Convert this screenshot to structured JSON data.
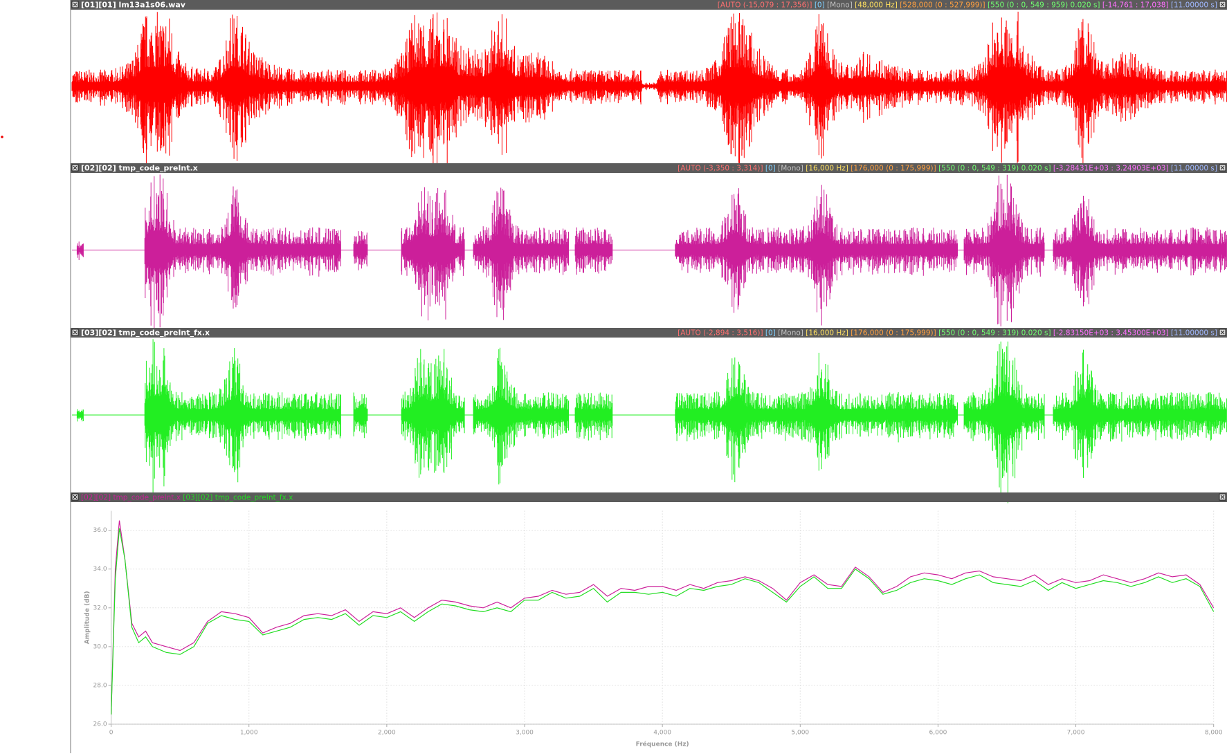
{
  "panels": [
    {
      "title": "[01][01] lm13a1s06.wav",
      "info": [
        "[AUTO (-15,079 : 17,356)]",
        "[0]",
        "[Mono]",
        "[48,000 Hz]",
        "[528,000 (0 : 527,999)]",
        "[550 (0 : 0, 549 : 959) 0.020 s]",
        "[-14,761 : 17,038]",
        "[11.00000 s]"
      ]
    },
    {
      "title": "[02][02] tmp_code_preInt.x",
      "info": [
        "[AUTO (-3,350 : 3,314)]",
        "[0]",
        "[Mono]",
        "[16,000 Hz]",
        "[176,000 (0 : 175,999)]",
        "[550 (0 : 0, 549 : 319) 0.020 s]",
        "[-3.28431E+03 : 3.24903E+03]",
        "[11.00000 s]"
      ]
    },
    {
      "title": "[03][02] tmp_code_preInt_fx.x",
      "info": [
        "[AUTO (-2,894 : 3,516)]",
        "[0]",
        "[Mono]",
        "[16,000 Hz]",
        "[176,000 (0 : 175,999)]",
        "[550 (0 : 0, 549 : 319) 0.020 s]",
        "[-2.83150E+03 : 3.45300E+03]",
        "[11.00000 s]"
      ]
    }
  ],
  "chart_data": {
    "type": "line",
    "xlabel": "Fréquence (Hz)",
    "ylabel": "Amplitude (dB)",
    "x": [
      0,
      30,
      60,
      100,
      150,
      200,
      250,
      300,
      400,
      500,
      600,
      700,
      800,
      900,
      1000,
      1100,
      1200,
      1300,
      1400,
      1500,
      1600,
      1700,
      1800,
      1900,
      2000,
      2100,
      2200,
      2300,
      2400,
      2500,
      2600,
      2700,
      2800,
      2900,
      3000,
      3100,
      3200,
      3300,
      3400,
      3500,
      3600,
      3700,
      3800,
      3900,
      4000,
      4100,
      4200,
      4300,
      4400,
      4500,
      4600,
      4700,
      4800,
      4900,
      5000,
      5100,
      5200,
      5300,
      5400,
      5500,
      5600,
      5700,
      5800,
      5900,
      6000,
      6100,
      6200,
      6300,
      6400,
      6500,
      6600,
      6700,
      6800,
      6900,
      7000,
      7100,
      7200,
      7300,
      7400,
      7500,
      7600,
      7700,
      7800,
      7900,
      8000
    ],
    "series": [
      {
        "name": "[02][02] tmp_code_preInt.x",
        "color": "#cc1f9a",
        "values": [
          26.5,
          34,
          36.5,
          34.5,
          31.2,
          30.5,
          30.8,
          30.2,
          30.0,
          29.8,
          30.2,
          31.3,
          31.8,
          31.7,
          31.5,
          30.7,
          31.0,
          31.2,
          31.6,
          31.7,
          31.6,
          31.9,
          31.3,
          31.8,
          31.7,
          32.0,
          31.5,
          32.0,
          32.4,
          32.3,
          32.1,
          32.0,
          32.3,
          32.0,
          32.5,
          32.6,
          32.9,
          32.7,
          32.8,
          33.2,
          32.6,
          33.0,
          32.9,
          33.1,
          33.1,
          32.9,
          33.2,
          33.0,
          33.3,
          33.4,
          33.6,
          33.4,
          33.0,
          32.4,
          33.3,
          33.7,
          33.2,
          33.1,
          34.1,
          33.6,
          32.8,
          33.1,
          33.6,
          33.8,
          33.7,
          33.5,
          33.8,
          33.9,
          33.6,
          33.5,
          33.4,
          33.7,
          33.2,
          33.5,
          33.3,
          33.4,
          33.7,
          33.5,
          33.3,
          33.5,
          33.8,
          33.6,
          33.7,
          33.2,
          32.0
        ]
      },
      {
        "name": "[03][02] tmp_code_preInt_fx.x",
        "color": "#22dd22",
        "values": [
          26.5,
          33.5,
          36.1,
          34.5,
          31.0,
          30.2,
          30.5,
          30.0,
          29.7,
          29.6,
          30.0,
          31.2,
          31.6,
          31.4,
          31.3,
          30.6,
          30.8,
          31.0,
          31.4,
          31.5,
          31.4,
          31.7,
          31.1,
          31.6,
          31.5,
          31.8,
          31.3,
          31.8,
          32.2,
          32.1,
          31.9,
          31.8,
          32.0,
          31.8,
          32.4,
          32.4,
          32.8,
          32.5,
          32.6,
          33.0,
          32.3,
          32.8,
          32.8,
          32.7,
          32.8,
          32.6,
          33.0,
          32.9,
          33.1,
          33.2,
          33.5,
          33.3,
          32.8,
          32.3,
          33.1,
          33.6,
          33.0,
          33.0,
          34.0,
          33.5,
          32.7,
          32.9,
          33.3,
          33.5,
          33.4,
          33.2,
          33.5,
          33.7,
          33.3,
          33.2,
          33.1,
          33.4,
          32.9,
          33.3,
          33.0,
          33.2,
          33.4,
          33.3,
          33.1,
          33.3,
          33.6,
          33.3,
          33.5,
          33.1,
          31.8
        ]
      }
    ],
    "xlim": [
      0,
      8000
    ],
    "ylim": [
      26,
      37
    ],
    "xticks": [
      0,
      {
        "value": 1000,
        "label": "1,000"
      },
      {
        "value": 2000,
        "label": "2,000"
      },
      {
        "value": 3000,
        "label": "3,000"
      },
      {
        "value": 4000,
        "label": "4,000"
      },
      {
        "value": 5000,
        "label": "5,000"
      },
      {
        "value": 6000,
        "label": "6,000"
      },
      {
        "value": 7000,
        "label": "7,000"
      },
      {
        "value": 8000,
        "label": "8,000"
      }
    ],
    "yticks": [
      {
        "value": 26,
        "label": "26.0"
      },
      {
        "value": 28,
        "label": "28.0"
      },
      {
        "value": 30,
        "label": "30.0"
      },
      {
        "value": 32,
        "label": "32.0"
      },
      {
        "value": 34,
        "label": "34.0"
      },
      {
        "value": 36,
        "label": "36.0"
      }
    ],
    "grid": true
  }
}
